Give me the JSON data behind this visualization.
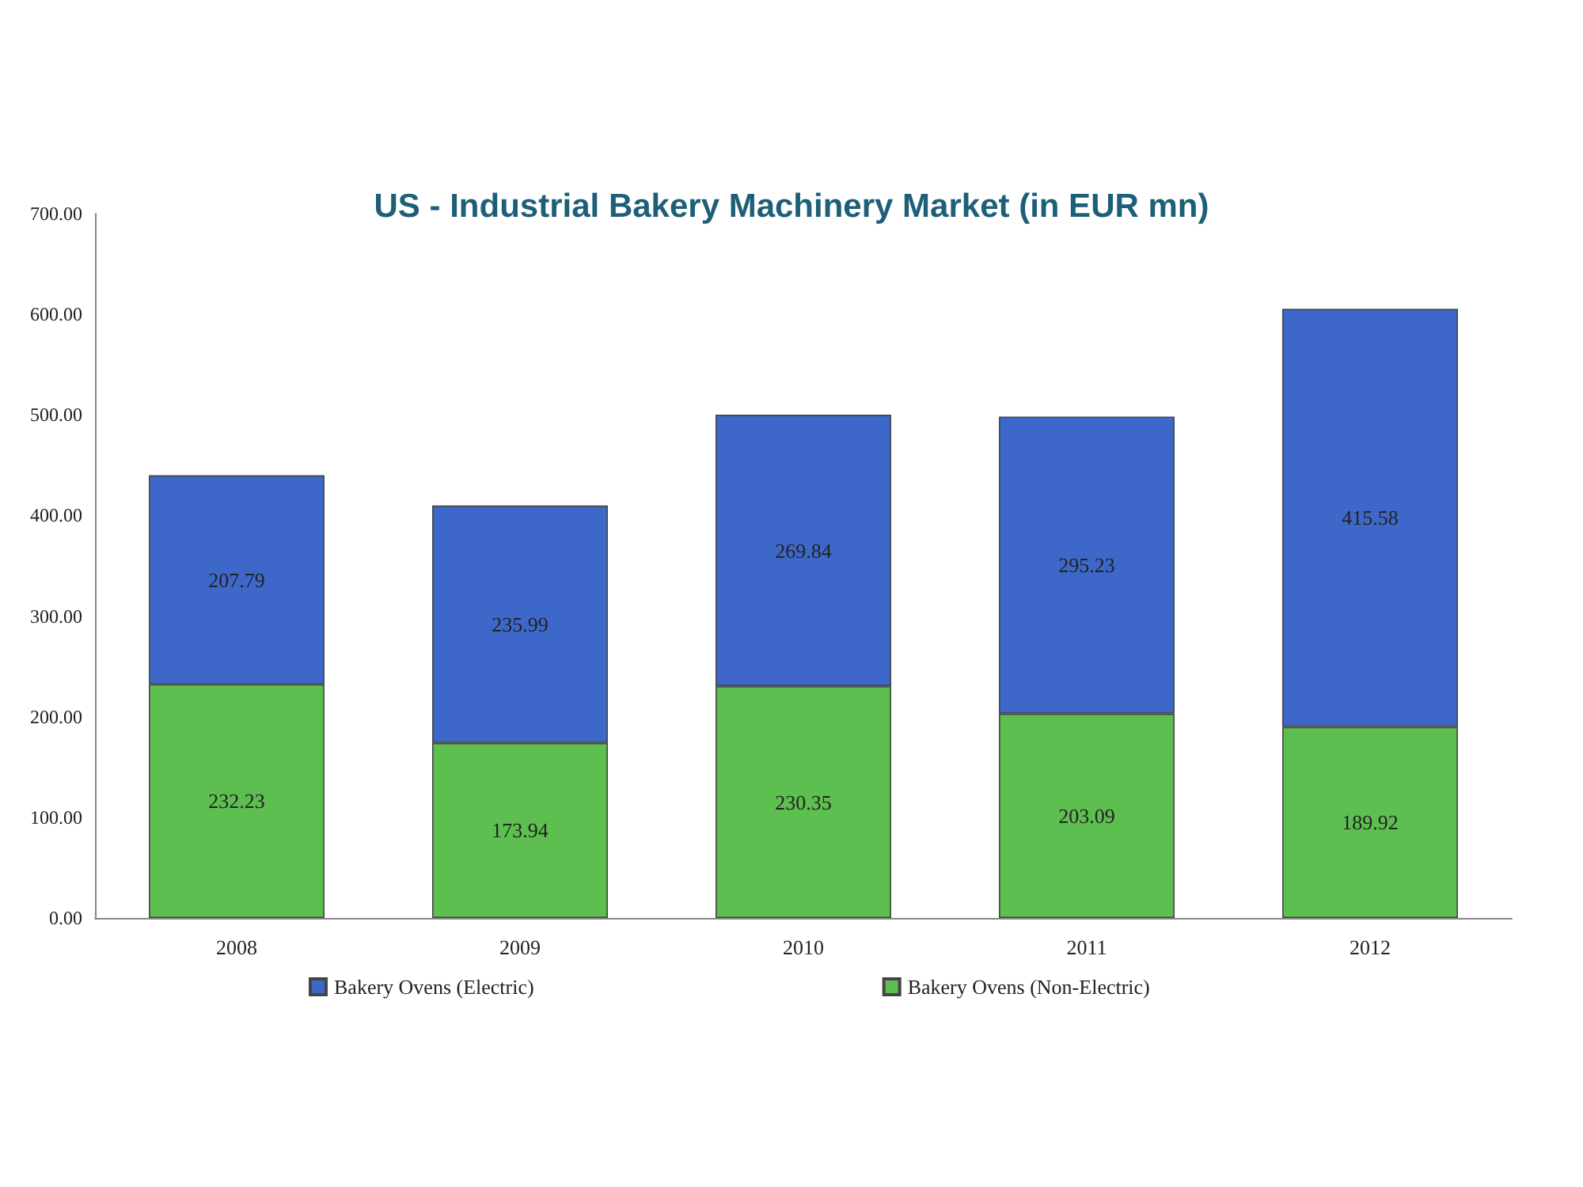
{
  "chart_data": {
    "type": "bar",
    "title": "US - Industrial Bakery Machinery Market (in EUR mn)",
    "categories": [
      "2008",
      "2009",
      "2010",
      "2011",
      "2012"
    ],
    "stacked": true,
    "series": [
      {
        "name": "Bakery Ovens (Non-Electric)",
        "color": "#5cbf4f",
        "values": [
          232.23,
          173.94,
          230.35,
          203.09,
          189.92
        ]
      },
      {
        "name": "Bakery Ovens (Electric)",
        "color": "#3d68c9",
        "values": [
          207.79,
          235.99,
          269.84,
          295.23,
          415.58
        ]
      }
    ],
    "ylim": [
      0,
      700
    ],
    "yticks": [
      {
        "value": 0,
        "label": "0.00"
      },
      {
        "value": 100,
        "label": "100.00"
      },
      {
        "value": 200,
        "label": "200.00"
      },
      {
        "value": 300,
        "label": "300.00"
      },
      {
        "value": 400,
        "label": "400.00"
      },
      {
        "value": 500,
        "label": "500.00"
      },
      {
        "value": 600,
        "label": "600.00"
      },
      {
        "value": 700,
        "label": "700.00"
      }
    ],
    "grid": false,
    "legend": "bottom",
    "data_labels": true
  }
}
